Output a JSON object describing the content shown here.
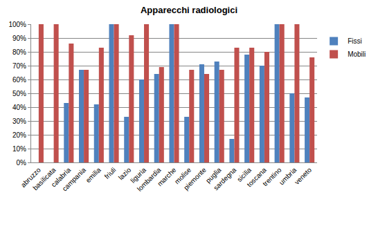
{
  "chart_data": {
    "type": "bar",
    "title": "Apparecchi radiologici",
    "categories": [
      "abruzzo",
      "basilicata",
      "calabria",
      "campania",
      "emilia",
      "friuli",
      "lazio",
      "liguria",
      "lombardia",
      "marche",
      "molise",
      "piemonte",
      "puglia",
      "sardegna",
      "sicilia",
      "toscana",
      "trentino",
      "umbria",
      "veneto"
    ],
    "series": [
      {
        "name": "Fissi",
        "color": "#4f81bd",
        "values": [
          0,
          0,
          43,
          67,
          42,
          100,
          33,
          60,
          64,
          100,
          33,
          71,
          73,
          17,
          78,
          70,
          100,
          50,
          47
        ]
      },
      {
        "name": "Mobili",
        "color": "#c0504d",
        "values": [
          100,
          100,
          86,
          67,
          83,
          100,
          92,
          100,
          69,
          100,
          67,
          64,
          67,
          83,
          83,
          80,
          100,
          100,
          76
        ]
      }
    ],
    "ylim": [
      0,
      100
    ],
    "yticks": [
      {
        "value": 0,
        "label": "0%"
      },
      {
        "value": 10,
        "label": "10%"
      },
      {
        "value": 20,
        "label": "20%"
      },
      {
        "value": 30,
        "label": "30%"
      },
      {
        "value": 40,
        "label": "40%"
      },
      {
        "value": 50,
        "label": "50%"
      },
      {
        "value": 60,
        "label": "60%"
      },
      {
        "value": 70,
        "label": "70%"
      },
      {
        "value": 80,
        "label": "80%"
      },
      {
        "value": 90,
        "label": "90%"
      },
      {
        "value": 100,
        "label": "100%"
      }
    ],
    "grid": true,
    "legend": "right"
  }
}
